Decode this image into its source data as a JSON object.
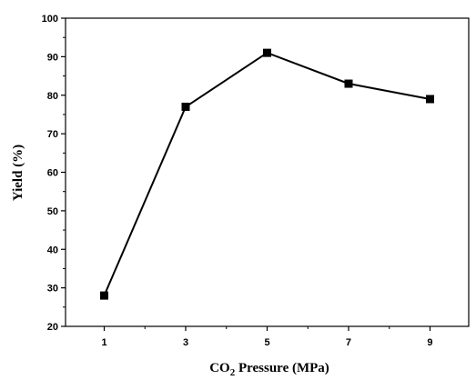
{
  "chart_data": {
    "type": "line",
    "x": [
      1,
      3,
      5,
      7,
      9
    ],
    "series": [
      {
        "values": [
          28,
          77,
          91,
          83,
          79
        ]
      }
    ],
    "xticks": [
      "1",
      "3",
      "5",
      "7",
      "9"
    ],
    "yticks": [
      "20",
      "30",
      "40",
      "50",
      "60",
      "70",
      "80",
      "90",
      "100"
    ],
    "xlabel_main": "CO",
    "xlabel_sub": "2",
    "xlabel_rest": " Pressure (MPa)",
    "ylabel": "Yield (%)",
    "xlim": [
      0.05,
      9.95
    ],
    "ylim": [
      20,
      100
    ],
    "grid": false,
    "marker": "square",
    "line_color": "#000000",
    "marker_color": "#000000"
  }
}
